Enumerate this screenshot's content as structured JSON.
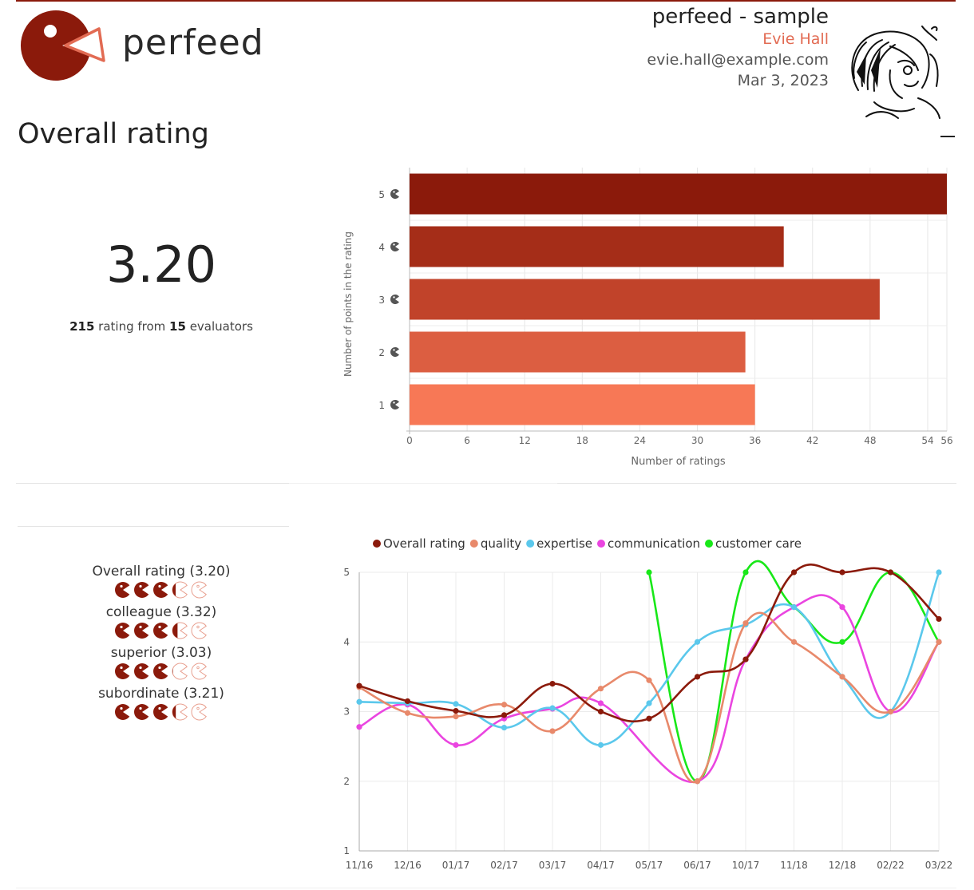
{
  "brand": {
    "name": "perfeed"
  },
  "header": {
    "title": "perfeed - sample",
    "person_name": "Evie Hall",
    "email": "evie.hall@example.com",
    "date": "Mar 3, 2023"
  },
  "section": {
    "title": "Overall rating"
  },
  "overall": {
    "score": "3.20",
    "ratings_count": "215",
    "ratings_text": " rating from ",
    "evaluators_count": "15",
    "evaluators_text": " evaluators"
  },
  "breakdown": [
    {
      "label": "Overall rating (3.20)",
      "value": 3.2
    },
    {
      "label": "colleague (3.32)",
      "value": 3.32
    },
    {
      "label": "superior (3.03)",
      "value": 3.03
    },
    {
      "label": "subordinate (3.21)",
      "value": 3.21
    }
  ],
  "colors": {
    "brand": "#8b1a0b",
    "accent": "#e26b53",
    "icon_empty": "#e8a090"
  },
  "chart_data": [
    {
      "type": "bar",
      "orientation": "horizontal",
      "categories": [
        "5",
        "4",
        "3",
        "2",
        "1"
      ],
      "values": [
        56,
        39,
        49,
        35,
        36
      ],
      "colors": [
        "#8b1a0b",
        "#a52d18",
        "#c1432a",
        "#dc5e41",
        "#f77856"
      ],
      "xlabel": "Number of ratings",
      "ylabel": "Number of points in the rating",
      "xticks": [
        0,
        6,
        12,
        18,
        24,
        30,
        36,
        42,
        48,
        54,
        56
      ],
      "xlim": [
        0,
        56
      ],
      "category_icon": "pacman-icon",
      "grid": true
    },
    {
      "type": "line",
      "x": [
        "11/16",
        "12/16",
        "01/17",
        "02/17",
        "03/17",
        "04/17",
        "05/17",
        "06/17",
        "10/17",
        "11/18",
        "12/18",
        "02/22",
        "03/22"
      ],
      "yticks": [
        1,
        2,
        3,
        4,
        5
      ],
      "ylim": [
        1,
        5
      ],
      "legend_position": "top",
      "grid": true,
      "series": [
        {
          "name": "Overall rating",
          "color": "#8b1a0b",
          "values": [
            3.37,
            3.15,
            3.01,
            2.95,
            3.4,
            3.0,
            2.9,
            3.5,
            3.75,
            5.0,
            5.0,
            5.0,
            4.33
          ]
        },
        {
          "name": "quality",
          "color": "#e8896b",
          "values": [
            3.35,
            2.98,
            2.93,
            3.1,
            2.72,
            3.33,
            3.45,
            2.0,
            4.27,
            4.0,
            3.5,
            3.0,
            4.0
          ]
        },
        {
          "name": "expertise",
          "color": "#5bc8ec",
          "values": [
            3.14,
            3.12,
            3.11,
            2.77,
            3.05,
            2.52,
            3.12,
            4.0,
            4.25,
            4.5,
            3.5,
            3.0,
            5.0
          ]
        },
        {
          "name": "communication",
          "color": "#ea45e0",
          "values": [
            2.78,
            3.1,
            2.52,
            2.9,
            3.04,
            3.12,
            null,
            2.0,
            3.75,
            4.5,
            4.5,
            3.0,
            4.0
          ]
        },
        {
          "name": "customer care",
          "color": "#18e818",
          "values": [
            null,
            null,
            null,
            null,
            null,
            null,
            5.0,
            2.0,
            5.0,
            4.5,
            4.0,
            5.0,
            4.0
          ]
        }
      ]
    }
  ]
}
